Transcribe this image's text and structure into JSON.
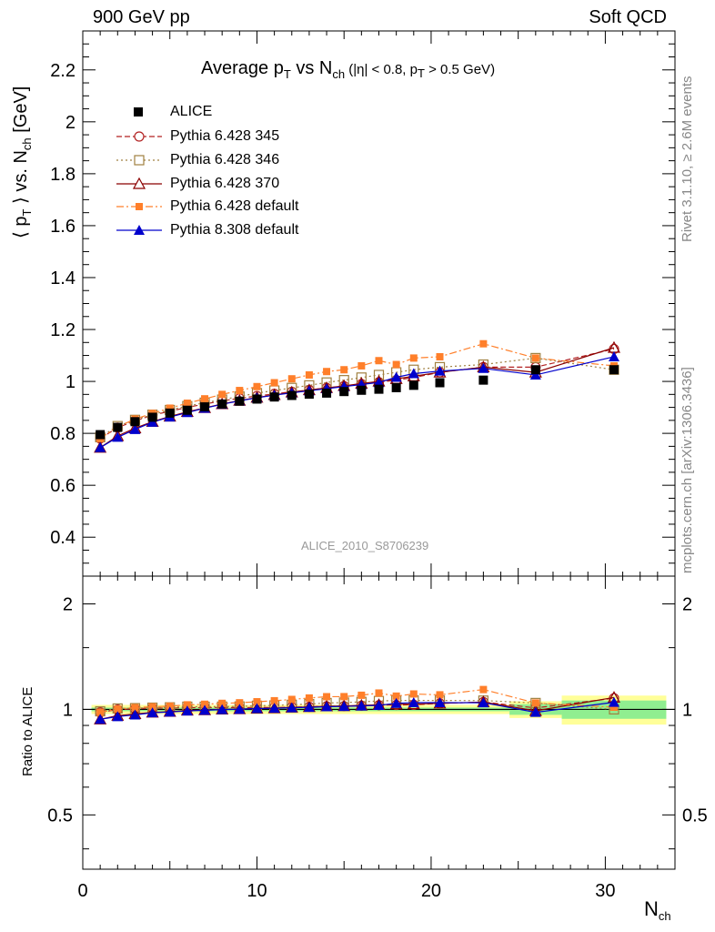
{
  "header": {
    "energy_label": "900 GeV pp",
    "process_label": "Soft QCD"
  },
  "side_labels": {
    "rivet": "Rivet 3.1.10, ≥ 2.6M events",
    "mcplots": "mcplots.cern.ch [arXiv:1306.3436]"
  },
  "watermark": "ALICE_2010_S8706239",
  "title": {
    "text_a": "Average p",
    "sub_t": "T",
    "text_b": " vs N",
    "sub_ch": "ch",
    "cut_a": " (|η| < 0.8, p",
    "cut_sub": "T",
    "cut_b": " > 0.5 GeV)"
  },
  "axes": {
    "main_ylabel_a": "⟨ p",
    "main_ylabel_sub": "T",
    "main_ylabel_b": " ⟩ vs. N",
    "main_ylabel_sub2": "ch",
    "main_ylabel_c": " [GeV]",
    "ratio_ylabel": "Ratio to ALICE",
    "xlabel_a": "N",
    "xlabel_sub": "ch",
    "x_ticks": [
      "0",
      "10",
      "20",
      "30"
    ],
    "main_y_ticks": [
      "0.4",
      "0.6",
      "0.8",
      "1",
      "1.2",
      "1.4",
      "1.6",
      "1.8",
      "2",
      "2.2"
    ],
    "ratio_y_ticks_left": [
      "0.5",
      "1",
      "2"
    ],
    "ratio_y_ticks_right": [
      "0.5",
      "1",
      "2"
    ]
  },
  "colors": {
    "alice": "#000000",
    "py345": "#b22222",
    "py346": "#a08040",
    "py370": "#8b0000",
    "py6def": "#ff7f2a",
    "py8def": "#0000cc",
    "band_inner": "#90ee90",
    "band_outer": "#ffff99"
  },
  "chart_data": {
    "type": "scatter",
    "x_range": [
      0,
      34
    ],
    "main_ylim": [
      0.25,
      2.35
    ],
    "ratio_ylim": [
      0.35,
      2.4
    ],
    "ratio_log_scale": true,
    "x": [
      1,
      2,
      3,
      4,
      5,
      6,
      7,
      8,
      9,
      10,
      11,
      12,
      13,
      14,
      15,
      16,
      17,
      18,
      19,
      20.5,
      23,
      26,
      30.5
    ],
    "series": [
      {
        "name": "ALICE",
        "key": "alice",
        "marker": "square-filled",
        "values": [
          0.795,
          0.823,
          0.845,
          0.862,
          0.878,
          0.889,
          0.902,
          0.913,
          0.924,
          0.932,
          0.94,
          0.946,
          0.951,
          0.955,
          0.961,
          0.966,
          0.97,
          0.976,
          0.985,
          0.995,
          1.005,
          1.045,
          1.045
        ]
      },
      {
        "name": "Pythia 6.428 345",
        "key": "py345",
        "marker": "circle-open",
        "dash": "6,3",
        "values": [
          0.78,
          0.822,
          0.848,
          0.87,
          0.885,
          0.9,
          0.913,
          0.925,
          0.935,
          0.944,
          0.952,
          0.96,
          0.967,
          0.975,
          0.982,
          0.99,
          0.997,
          1.005,
          1.015,
          1.035,
          1.055,
          1.055,
          1.125
        ]
      },
      {
        "name": "Pythia 6.428 346",
        "key": "py346",
        "marker": "square-open",
        "dash": "2,3",
        "values": [
          0.785,
          0.828,
          0.852,
          0.872,
          0.89,
          0.905,
          0.918,
          0.93,
          0.942,
          0.955,
          0.965,
          0.975,
          0.985,
          0.996,
          1.005,
          1.015,
          1.025,
          1.035,
          1.045,
          1.055,
          1.065,
          1.09,
          1.045
        ]
      },
      {
        "name": "Pythia 6.428 370",
        "key": "py370",
        "marker": "triangle-open",
        "dash": "",
        "values": [
          0.745,
          0.79,
          0.82,
          0.845,
          0.865,
          0.883,
          0.898,
          0.913,
          0.926,
          0.938,
          0.948,
          0.958,
          0.967,
          0.975,
          0.983,
          0.992,
          1.0,
          1.01,
          1.02,
          1.035,
          1.055,
          1.035,
          1.13
        ]
      },
      {
        "name": "Pythia 6.428 default",
        "key": "py6def",
        "marker": "square-filled-small",
        "dash": "8,3,2,3",
        "values": [
          0.78,
          0.825,
          0.855,
          0.877,
          0.897,
          0.916,
          0.933,
          0.95,
          0.965,
          0.98,
          0.995,
          1.01,
          1.025,
          1.038,
          1.045,
          1.06,
          1.08,
          1.065,
          1.09,
          1.095,
          1.145,
          1.09,
          1.06
        ]
      },
      {
        "name": "Pythia 8.308 default",
        "key": "py8def",
        "marker": "triangle-filled",
        "dash": "",
        "values": [
          0.745,
          0.785,
          0.815,
          0.843,
          0.863,
          0.88,
          0.897,
          0.912,
          0.925,
          0.937,
          0.947,
          0.956,
          0.964,
          0.972,
          0.98,
          0.988,
          0.996,
          1.016,
          1.03,
          1.04,
          1.05,
          1.025,
          1.095
        ]
      }
    ],
    "ratio_bands": [
      {
        "x0": 0.5,
        "x1": 24.5,
        "outer": 0.03,
        "inner": 0.012
      },
      {
        "x0": 24.5,
        "x1": 27.5,
        "outer": 0.055,
        "inner": 0.035
      },
      {
        "x0": 27.5,
        "x1": 33.5,
        "outer": 0.095,
        "inner": 0.06
      }
    ]
  }
}
